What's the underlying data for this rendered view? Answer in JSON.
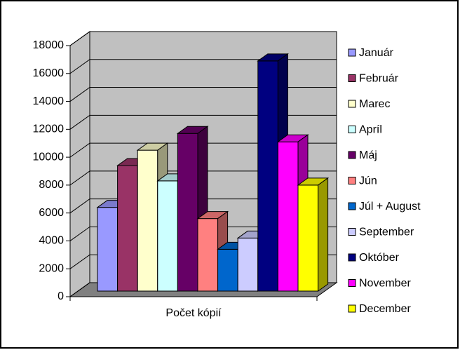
{
  "chart_data": {
    "type": "bar3d",
    "categories": [
      "Počet kópií"
    ],
    "series": [
      {
        "name": "Január",
        "color": "#9999ff",
        "values": [
          6000
        ]
      },
      {
        "name": "Február",
        "color": "#993366",
        "values": [
          9000
        ]
      },
      {
        "name": "Marec",
        "color": "#ffffcc",
        "values": [
          10100
        ]
      },
      {
        "name": "Apríl",
        "color": "#ccffff",
        "values": [
          7900
        ]
      },
      {
        "name": "Máj",
        "color": "#660066",
        "values": [
          11300
        ]
      },
      {
        "name": "Jún",
        "color": "#ff8080",
        "values": [
          5200
        ]
      },
      {
        "name": "Júl + August",
        "color": "#0066cc",
        "values": [
          3000
        ]
      },
      {
        "name": "September",
        "color": "#ccccff",
        "values": [
          3800
        ]
      },
      {
        "name": "Október",
        "color": "#000080",
        "values": [
          16500
        ]
      },
      {
        "name": "November",
        "color": "#ff00ff",
        "values": [
          10700
        ]
      },
      {
        "name": "December",
        "color": "#ffff00",
        "values": [
          7600
        ]
      }
    ],
    "ylim": [
      0,
      18000
    ],
    "yticks": [
      0,
      2000,
      4000,
      6000,
      8000,
      10000,
      12000,
      14000,
      16000,
      18000
    ],
    "grid": true,
    "legend": "right"
  }
}
